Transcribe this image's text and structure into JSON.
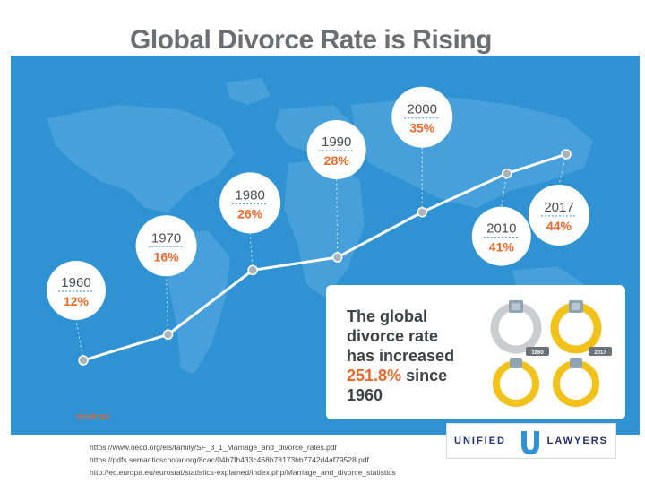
{
  "title": "Global Divorce Rate is Rising",
  "chart_data": {
    "type": "line",
    "title": "Global Divorce Rate is Rising",
    "x": [
      "1960",
      "1970",
      "1980",
      "1990",
      "2000",
      "2010",
      "2017"
    ],
    "values": [
      12,
      16,
      26,
      28,
      35,
      41,
      44
    ],
    "value_labels": [
      "12%",
      "16%",
      "26%",
      "28%",
      "35%",
      "41%",
      "44%"
    ],
    "unit": "%",
    "grid": false,
    "legend": "none"
  },
  "info": {
    "line1": "The global",
    "line2": "divorce rate",
    "line3": "has increased",
    "highlight": "251.8%",
    "line4_rest": " since",
    "line5": "1960",
    "ring_label_1960": "1960",
    "ring_label_2017": "2017"
  },
  "sources": {
    "title": "SOURCES",
    "items": [
      "https://www.oecd.org/els/family/SF_3_1_Marriage_and_divorce_rates.pdf",
      "https://pdfs.semanticscholar.org/8cac/04b7fb433c468b78173bb7742d4af79528.pdf",
      "http://ec.europa.eu/eurostat/statistics-explained/index.php/Marriage_and_divorce_statistics"
    ]
  },
  "logo": {
    "left": "UNIFIED",
    "right": "LAWYERS"
  },
  "colors": {
    "background": "#2f93d3",
    "accent": "#e8692b",
    "line": "#ffffff",
    "marker": "#a9b4bb",
    "ring_gold": "#f2c21b",
    "ring_gray": "#c9cdd0"
  }
}
